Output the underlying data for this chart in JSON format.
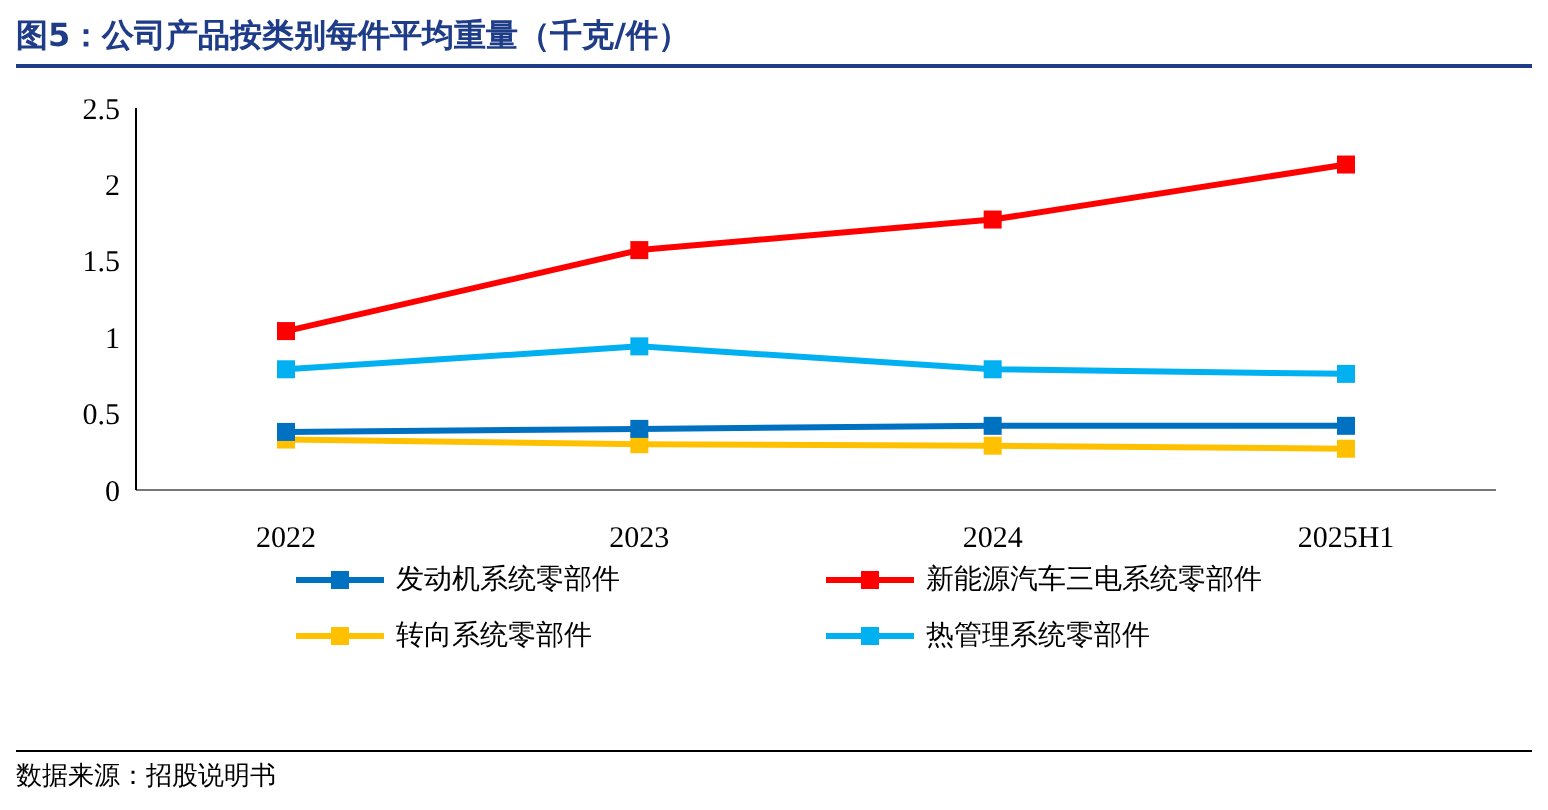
{
  "chart_data": {
    "type": "line",
    "title": "图5：公司产品按类别每件平均重量（千克/件）",
    "categories": [
      "2022",
      "2023",
      "2024",
      "2025H1"
    ],
    "series": [
      {
        "name": "发动机系统零部件",
        "color": "#0070c0",
        "values": [
          0.38,
          0.4,
          0.42,
          0.42
        ]
      },
      {
        "name": "新能源汽车三电系统零部件",
        "color": "#ff0000",
        "values": [
          1.04,
          1.57,
          1.77,
          2.13
        ]
      },
      {
        "name": "转向系统零部件",
        "color": "#ffc000",
        "values": [
          0.33,
          0.3,
          0.29,
          0.27
        ]
      },
      {
        "name": "热管理系统零部件",
        "color": "#00b0f0",
        "values": [
          0.79,
          0.94,
          0.79,
          0.76
        ]
      }
    ],
    "ylim": [
      0,
      2.5
    ],
    "yticks": [
      0,
      0.5,
      1,
      1.5,
      2,
      2.5
    ],
    "grid": false,
    "legend": "bottom",
    "marker": "square",
    "line_style": "solid",
    "annotations": [
      "数据来源：招股说明书"
    ]
  }
}
